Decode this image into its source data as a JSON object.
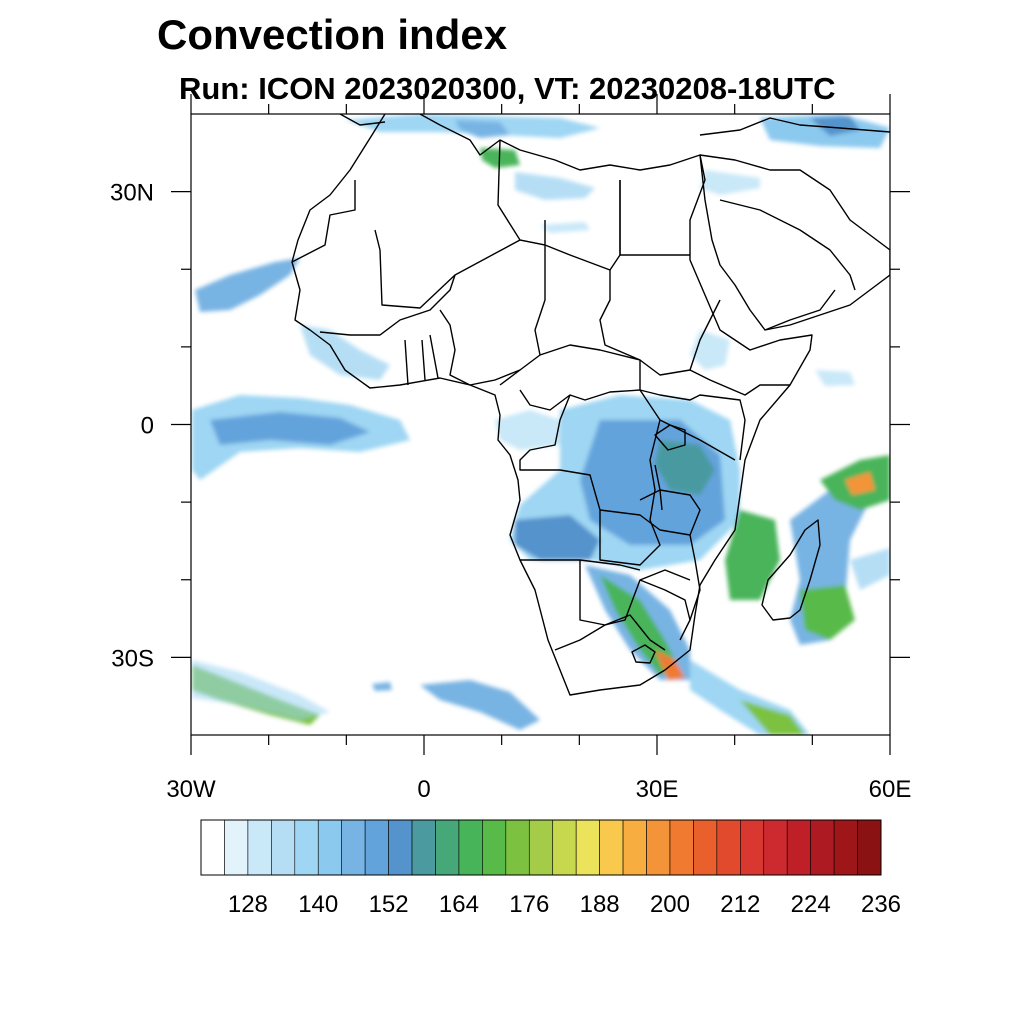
{
  "title": "Convection index",
  "subtitle": "Run: ICON 2023020300,  VT: 20230208-18UTC",
  "map": {
    "lon_range": [
      -30,
      60
    ],
    "lat_range": [
      -40,
      40
    ],
    "lon_ticks": [
      {
        "value": -30,
        "label": "30W"
      },
      {
        "value": 0,
        "label": "0"
      },
      {
        "value": 30,
        "label": "30E"
      },
      {
        "value": 60,
        "label": "60E"
      }
    ],
    "lat_ticks": [
      {
        "value": 30,
        "label": "30N"
      },
      {
        "value": 0,
        "label": "0"
      },
      {
        "value": -30,
        "label": "30S"
      }
    ],
    "minor_lon_ticks": [
      -20,
      -10,
      10,
      20,
      40,
      50
    ],
    "minor_lat_ticks": [
      20,
      10,
      -10,
      -20
    ],
    "background_color": "#ffffff",
    "boundary_color": "#000000"
  },
  "colorbar": {
    "colors": [
      "#ffffff",
      "#e3f3fc",
      "#c9e8f8",
      "#b5def5",
      "#9ed6f3",
      "#8bc9ee",
      "#78b4e3",
      "#63a3dc",
      "#5493cc",
      "#4a9aa0",
      "#46a878",
      "#48b45a",
      "#58ba48",
      "#7cc240",
      "#a5cc48",
      "#c8d84e",
      "#ebe35a",
      "#f9c94d",
      "#f8ad40",
      "#f49438",
      "#ef7a30",
      "#e9602c",
      "#e14a2c",
      "#d93830",
      "#cd2a30",
      "#bf2028",
      "#ae1a22",
      "#9e1618",
      "#8a1212"
    ],
    "tick_labels": [
      "128",
      "140",
      "152",
      "164",
      "176",
      "188",
      "200",
      "212",
      "224",
      "236"
    ],
    "tick_after_box": [
      2,
      5,
      8,
      11,
      14,
      17,
      20,
      23,
      26,
      29
    ]
  }
}
